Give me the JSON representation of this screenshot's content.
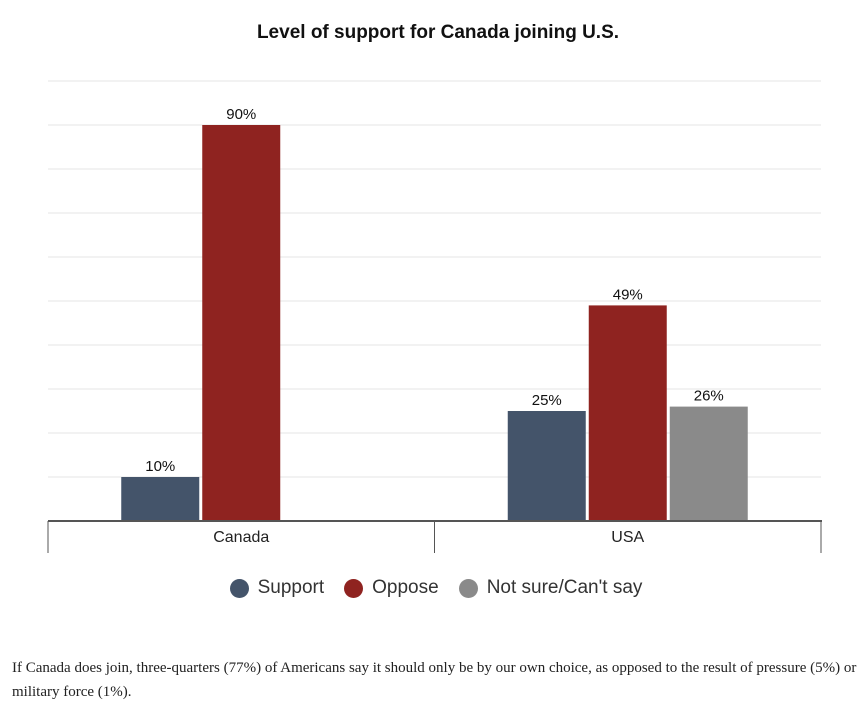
{
  "chart_data": {
    "type": "bar",
    "title": "Level of support for Canada joining U.S.",
    "categories": [
      "Canada",
      "USA"
    ],
    "series": [
      {
        "name": "Support",
        "color": "#44546a",
        "values": [
          10,
          25
        ],
        "labels": [
          "10%",
          "25%"
        ]
      },
      {
        "name": "Oppose",
        "color": "#8f2320",
        "values": [
          90,
          49
        ],
        "labels": [
          "90%",
          "49%"
        ]
      },
      {
        "name": "Not sure/Can't say",
        "color": "#8a8a8a",
        "values": [
          null,
          26
        ],
        "labels": [
          null,
          "26%"
        ]
      }
    ],
    "ylim": [
      0,
      100
    ],
    "grid": true,
    "legend": "bottom"
  },
  "footnote": "If Canada does join, three-quarters (77%) of Americans say it should only be by our own choice, as opposed to the result of pressure (5%) or military force (1%)."
}
